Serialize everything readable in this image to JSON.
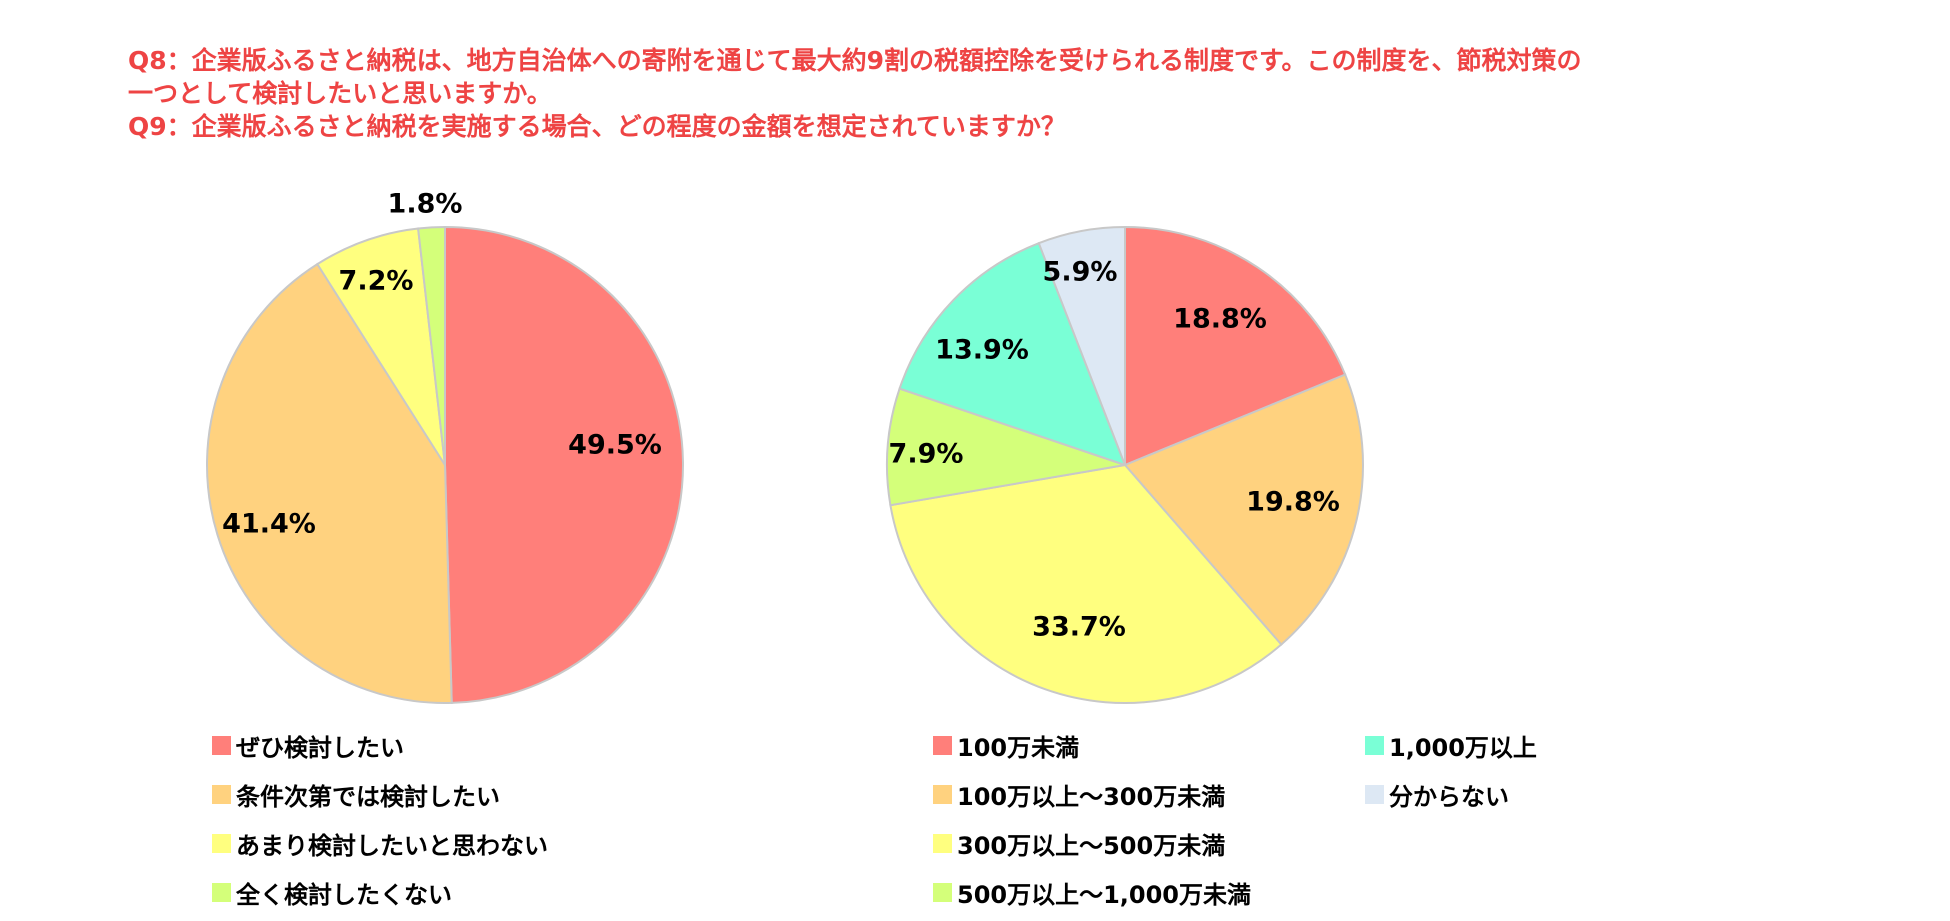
{
  "questions": {
    "q8_line1": "Q8：企業版ふるさと納税は、地方自治体への寄附を通じて最大約9割の税額控除を受けられる制度です。この制度を、節税対策の",
    "q8_line2": "一つとして検討したいと思いますか。",
    "q9_line": "Q9：企業版ふるさと納税を実施する場合、どの程度の金額を想定されていますか？"
  },
  "chart_data": [
    {
      "type": "pie",
      "title": "",
      "categories": [
        "ぜひ検討したい",
        "条件次第では検討したい",
        "あまり検討したいと思わない",
        "全く検討したくない"
      ],
      "values": [
        49.5,
        41.4,
        7.2,
        1.8
      ],
      "labels": [
        "49.5%",
        "41.4%",
        "7.2%",
        "1.8%"
      ],
      "colors": [
        "#ff7f7a",
        "#ffd27f",
        "#ffff7f",
        "#d4ff7a"
      ],
      "start": "12 o'clock",
      "direction": "clockwise",
      "legend": "bottom"
    },
    {
      "type": "pie",
      "title": "",
      "categories": [
        "100万未満",
        "100万以上～300万未満",
        "300万以上～500万未満",
        "500万以上～1,000万未満",
        "1,000万以上",
        "分からない"
      ],
      "values": [
        18.8,
        19.8,
        33.7,
        7.9,
        13.9,
        5.9
      ],
      "labels": [
        "18.8%",
        "19.8%",
        "33.7%",
        "7.9%",
        "13.9%",
        "5.9%"
      ],
      "colors": [
        "#ff7f7a",
        "#ffd27f",
        "#ffff7f",
        "#d4ff7a",
        "#7affd6",
        "#dde8f4"
      ],
      "start": "12 o'clock",
      "direction": "clockwise",
      "legend": "bottom"
    }
  ]
}
